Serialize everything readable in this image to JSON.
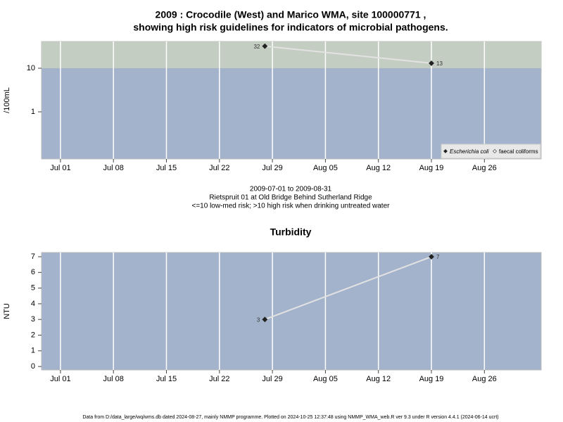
{
  "chart_data": [
    {
      "type": "line",
      "title": [
        "2009 : Crocodile (West) and Marico WMA, site 100000771 ,",
        "showing high risk guidelines for indicators of microbial pathogens."
      ],
      "y_label": "/100mL",
      "log_scale": true,
      "x": [
        "2009-07-28",
        "2009-08-19"
      ],
      "series": [
        {
          "name": "Escherichia coli",
          "color": "#222222",
          "line_color": "#e2e2e2",
          "values": [
            32,
            13
          ]
        },
        {
          "name": "faecal coliforms",
          "color": "#ffffff",
          "line_color": "#e2e2e2",
          "values": [
            null,
            null
          ]
        }
      ],
      "xlim": [
        "2009-06-28T12:00",
        "2009-09-02T12:00"
      ],
      "xticks": [
        {
          "value": "2009-07-01",
          "label": "Jul 01"
        },
        {
          "value": "2009-07-08",
          "label": "Jul 08"
        },
        {
          "value": "2009-07-15",
          "label": "Jul 15"
        },
        {
          "value": "2009-07-22",
          "label": "Jul 22"
        },
        {
          "value": "2009-07-29",
          "label": "Jul 29"
        },
        {
          "value": "2009-08-05",
          "label": "Aug 05"
        },
        {
          "value": "2009-08-12",
          "label": "Aug 12"
        },
        {
          "value": "2009-08-19",
          "label": "Aug 19"
        },
        {
          "value": "2009-08-26",
          "label": "Aug 26"
        }
      ],
      "ylim": [
        0.083,
        41
      ],
      "yticks": [
        1,
        10
      ],
      "background": "#a3b3cb",
      "threshold": 10,
      "above_color": "#c4cdc1",
      "grid": true,
      "legend": "lower right"
    },
    {
      "type": "line",
      "title": [
        "Turbidity"
      ],
      "y_label": "NTU",
      "log_scale": false,
      "x": [
        "2009-07-28",
        "2009-08-19"
      ],
      "series": [
        {
          "name": "Turbidity",
          "color": "#222222",
          "line_color": "#e2e2e2",
          "values": [
            3,
            7
          ]
        }
      ],
      "xlim": [
        "2009-06-28T12:00",
        "2009-09-02T12:00"
      ],
      "xticks": [
        {
          "value": "2009-07-01",
          "label": "Jul 01"
        },
        {
          "value": "2009-07-08",
          "label": "Jul 08"
        },
        {
          "value": "2009-07-15",
          "label": "Jul 15"
        },
        {
          "value": "2009-07-22",
          "label": "Jul 22"
        },
        {
          "value": "2009-07-29",
          "label": "Jul 29"
        },
        {
          "value": "2009-08-05",
          "label": "Aug 05"
        },
        {
          "value": "2009-08-12",
          "label": "Aug 12"
        },
        {
          "value": "2009-08-19",
          "label": "Aug 19"
        },
        {
          "value": "2009-08-26",
          "label": "Aug 26"
        }
      ],
      "ylim": [
        -0.22,
        7.27
      ],
      "yticks": [
        0,
        1,
        2,
        3,
        4,
        5,
        6,
        7
      ],
      "background": "#a3b3cb",
      "grid": true
    }
  ],
  "caption": [
    "2009-07-01 to 2009-08-31",
    "Rietspruit 01 at Old Bridge Behind Sutherland Ridge",
    "<=10 low-med risk; >10 high risk when drinking untreated water"
  ],
  "footer": "Data from D:/data_large/wq/wms.db dated 2024-08-27, mainly NMMP programme. Plotted on 2024-10-25 12:37:48 using NMMP_WMA_web.R ver 9.3 under R version 4.4.1 (2024-06-14 ucrt)"
}
